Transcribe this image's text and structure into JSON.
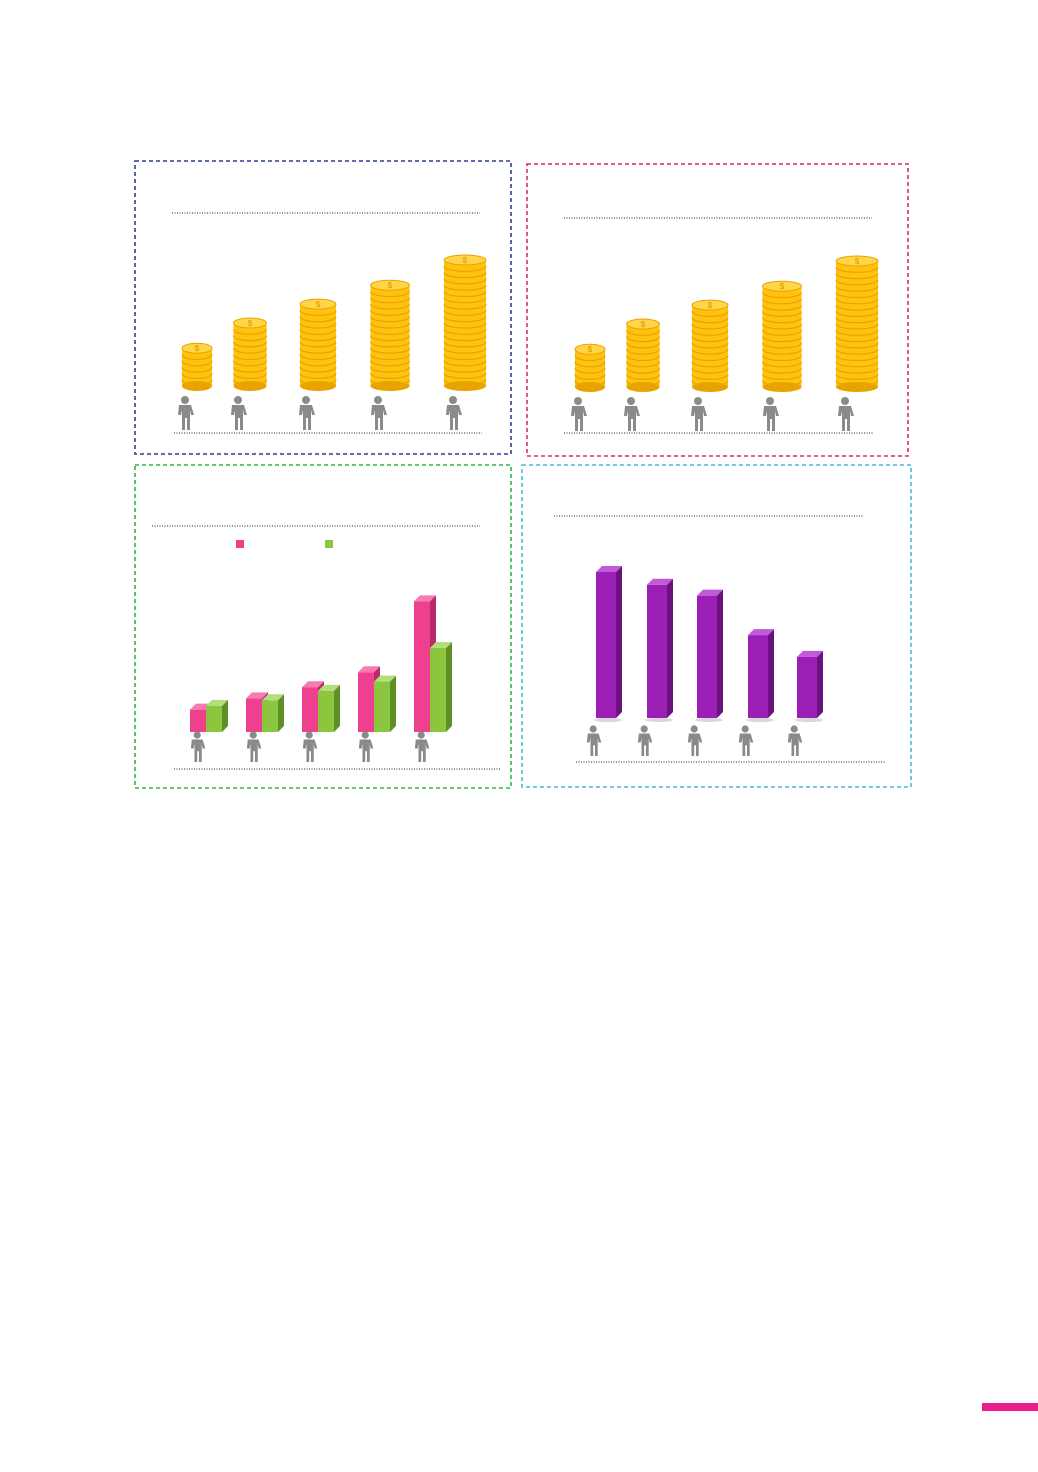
{
  "colors": {
    "panel1_border": "#2f3f8f",
    "panel2_border": "#e2237a",
    "panel3_border": "#2eb34f",
    "panel4_border": "#4bb8d6",
    "coin": "#ffc20e",
    "coin_dark": "#e8a300",
    "pink": "#ef3f8f",
    "green": "#8cc63f",
    "purple": "#9b1fb5",
    "icon": "#8a8a8a",
    "accent": "#e91e8c"
  },
  "icons": [
    "person-icon",
    "person-with-child-icon",
    "person-with-car-icon",
    "person-with-house-icon",
    "person-with-large-house-icon"
  ],
  "chart_data": [
    {
      "type": "bar",
      "style": "coin-stacks",
      "categories": [
        "person",
        "person-with-child",
        "person-with-car",
        "person-with-house",
        "person-with-large-house"
      ],
      "values": [
        6,
        10,
        13,
        16,
        20
      ],
      "ylim": [
        0,
        20
      ],
      "grid": false
    },
    {
      "type": "bar",
      "style": "coin-stacks",
      "categories": [
        "person",
        "person-with-child",
        "person-with-car",
        "person-with-house",
        "person-with-large-house"
      ],
      "values": [
        6,
        10,
        13,
        16,
        20
      ],
      "ylim": [
        0,
        20
      ],
      "grid": false
    },
    {
      "type": "bar",
      "style": "3d-grouped",
      "categories": [
        "person",
        "person-with-child",
        "person-with-car",
        "person-with-house",
        "person-with-large-house"
      ],
      "series": [
        {
          "values": [
            24,
            36,
            48,
            64,
            140
          ]
        },
        {
          "values": [
            28,
            34,
            44,
            54,
            90
          ]
        }
      ],
      "legend": "top",
      "ylim": [
        0,
        150
      ],
      "grid": false
    },
    {
      "type": "bar",
      "style": "3d",
      "categories": [
        "person",
        "person-with-child",
        "person-with-car",
        "person-with-house",
        "person-with-large-house"
      ],
      "values": [
        148,
        135,
        124,
        84,
        62
      ],
      "ylim": [
        0,
        150
      ],
      "grid": false
    }
  ]
}
